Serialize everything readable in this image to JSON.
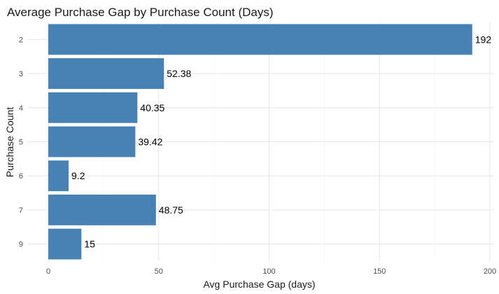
{
  "chart_data": {
    "type": "bar",
    "orientation": "horizontal",
    "title": "Average Purchase Gap by Purchase Count (Days)",
    "xlabel": "Avg Purchase Gap (days)",
    "ylabel": "Purchase Count",
    "categories": [
      "2",
      "3",
      "4",
      "5",
      "6",
      "7",
      "9"
    ],
    "values": [
      192,
      52.38,
      40.35,
      39.42,
      9.2,
      48.75,
      15
    ],
    "value_labels": [
      "192",
      "52.38",
      "40.35",
      "39.42",
      "9.2",
      "48.75",
      "15"
    ],
    "xlim": [
      0,
      200
    ],
    "xticks": [
      0,
      50,
      100,
      150,
      200
    ],
    "bar_color": "#4682b4",
    "grid": true,
    "legend": "none"
  }
}
